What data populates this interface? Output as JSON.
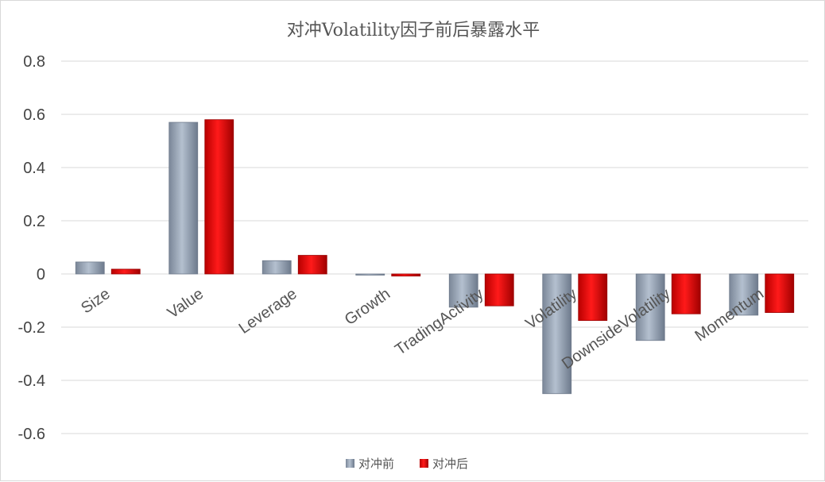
{
  "chart_data": {
    "type": "bar",
    "title": "对冲Volatility因子前后暴露水平",
    "categories": [
      "Size",
      "Value",
      "Leverage",
      "Growth",
      "TradingActivity",
      "Volatility",
      "DownsideVolatility",
      "Momentum"
    ],
    "series": [
      {
        "name": "对冲前",
        "values": [
          0.045,
          0.57,
          0.05,
          -0.003,
          -0.125,
          -0.45,
          -0.25,
          -0.155
        ],
        "color": "#95a3b5"
      },
      {
        "name": "对冲后",
        "values": [
          0.018,
          0.58,
          0.07,
          -0.008,
          -0.12,
          -0.175,
          -0.15,
          -0.145
        ],
        "color": "#e00000"
      }
    ],
    "ylim": [
      -0.6,
      0.8
    ],
    "yticks": [
      0.8,
      0.6,
      0.4,
      0.2,
      0,
      -0.2,
      -0.4,
      -0.6
    ],
    "ytick_labels": [
      "0.8",
      "0.6",
      "0.4",
      "0.2",
      "0",
      "-0.2",
      "-0.4",
      "-0.6"
    ],
    "grid": true,
    "legend_position": "bottom"
  }
}
